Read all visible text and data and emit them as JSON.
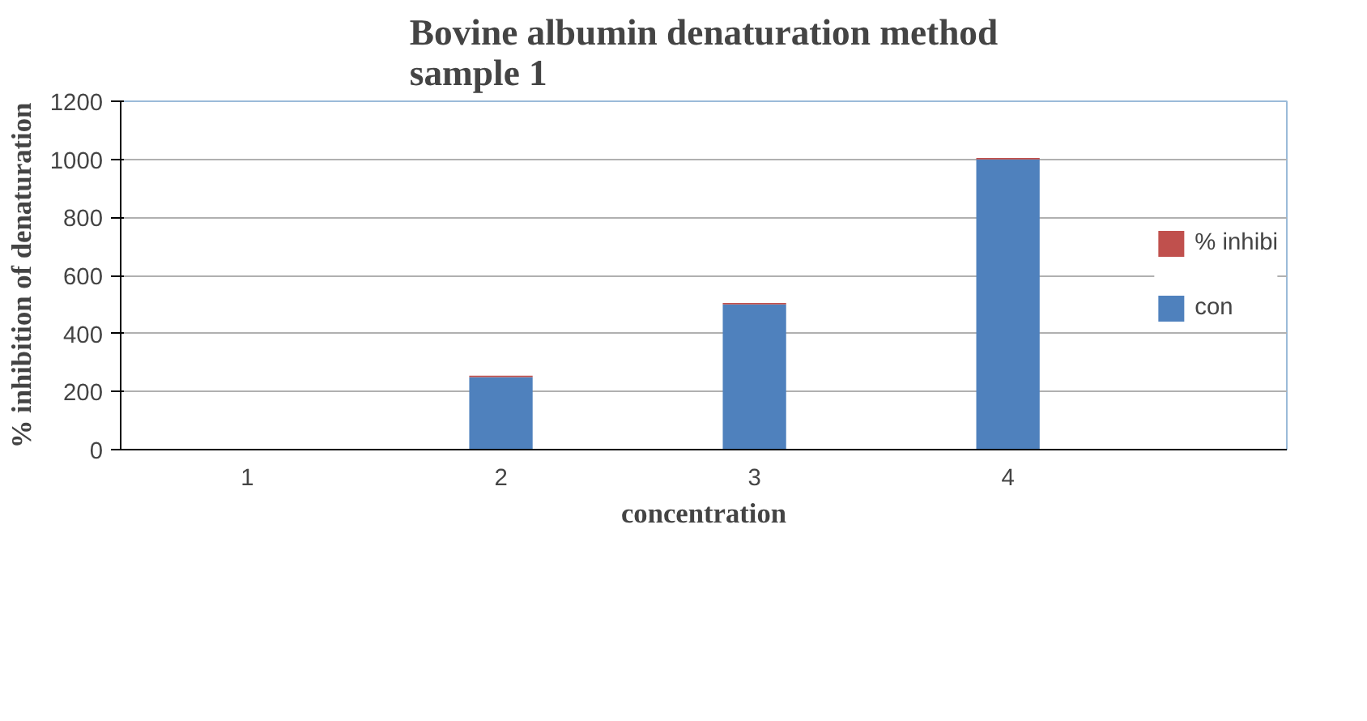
{
  "chart_data": {
    "type": "bar",
    "stacked": true,
    "title": "Bovine albumin denaturation method\nsample 1",
    "xlabel": "concentration",
    "ylabel": "% inhibition of denaturation",
    "categories": [
      "1",
      "2",
      "3",
      "4"
    ],
    "series": [
      {
        "name": "con",
        "color": "#4f81bd",
        "values": [
          0,
          250,
          500,
          1000
        ]
      },
      {
        "name": "% inhibi",
        "color": "#c0504d",
        "values": [
          0,
          5,
          5,
          5
        ]
      }
    ],
    "ylim": [
      0,
      1200
    ],
    "yticks": [
      0,
      200,
      400,
      600,
      800,
      1000,
      1200
    ],
    "grid": "y",
    "legend": "right"
  }
}
